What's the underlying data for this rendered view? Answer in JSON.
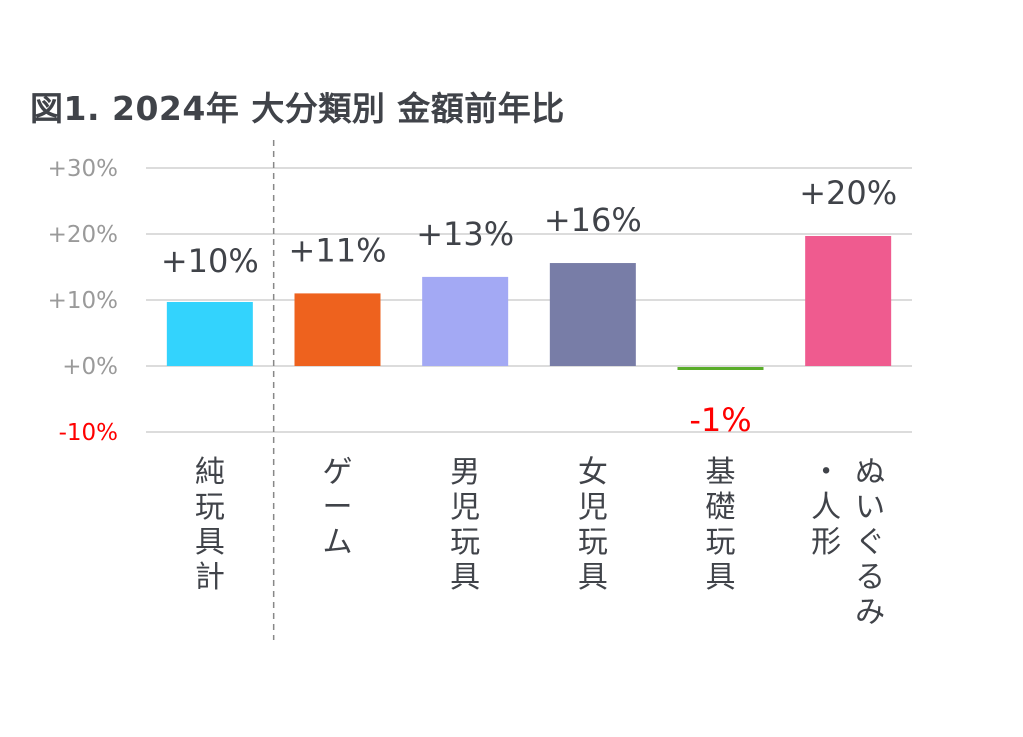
{
  "chart_data": {
    "type": "bar",
    "title": "図1. 2024年 大分類別 金額前年比",
    "categories": [
      "純玩具計",
      "ゲーム",
      "男児玩具",
      "女児玩具",
      "基礎玩具",
      "ぬいぐるみ・人形"
    ],
    "category_columns": [
      [
        "純玩具計"
      ],
      [
        "ゲーム"
      ],
      [
        "男児玩具"
      ],
      [
        "女児玩具"
      ],
      [
        "基礎玩具"
      ],
      [
        "ぬいぐるみ",
        "・人形"
      ]
    ],
    "values": [
      9.7,
      11,
      13.5,
      15.6,
      -0.6,
      19.7
    ],
    "data_labels": [
      "+10%",
      "+11%",
      "+13%",
      "+16%",
      "-1%",
      "+20%"
    ],
    "colors": [
      "#33d3fd",
      "#ee621e",
      "#a3a9f4",
      "#787da7",
      "#5aad2a",
      "#ef5b8f"
    ],
    "ylim": [
      -10,
      30
    ],
    "yticks": [
      30,
      20,
      10,
      0,
      -10
    ],
    "ytick_labels": [
      "+30%",
      "+20%",
      "+10%",
      "+0%",
      "-10%"
    ],
    "negative_label_color": "#ff0000",
    "grid": true,
    "divider_after_first": true
  }
}
